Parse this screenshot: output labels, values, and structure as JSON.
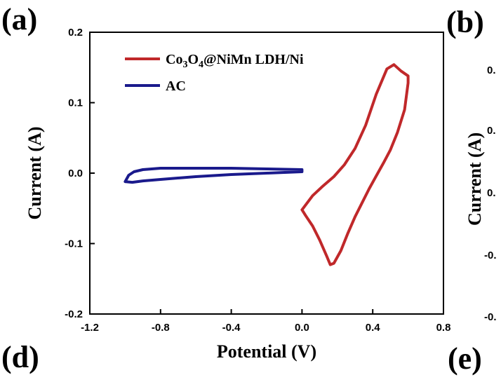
{
  "panels": {
    "a": "(a)",
    "b": "(b)",
    "d": "(d)",
    "e": "(e)"
  },
  "chart_data": {
    "type": "line",
    "title": "",
    "xlabel": "Potential (V)",
    "ylabel": "Current (A)",
    "xlim": [
      -1.2,
      0.8
    ],
    "ylim": [
      -0.2,
      0.2
    ],
    "xticks": [
      -1.2,
      -0.8,
      -0.4,
      0.0,
      0.4,
      0.8
    ],
    "xtick_labels": [
      "-1.2",
      "-0.8",
      "-0.4",
      "0.0",
      "0.4",
      "0.8"
    ],
    "yticks": [
      -0.2,
      -0.1,
      0.0,
      0.1,
      0.2
    ],
    "ytick_labels": [
      "-0.2",
      "-0.1",
      "0.0",
      "0.1",
      "0.2"
    ],
    "grid": false,
    "legend_position": "top-left",
    "series": [
      {
        "name": "Co3O4@NiMn LDH/Ni",
        "legend_main": "Co",
        "legend_sub1": "3",
        "legend_mid": "O",
        "legend_sub2": "4",
        "legend_tail": "@NiMn LDH/Ni",
        "color": "#c0282a",
        "x": [
          0.0,
          0.06,
          0.12,
          0.18,
          0.24,
          0.3,
          0.36,
          0.42,
          0.48,
          0.52,
          0.56,
          0.6,
          0.6,
          0.58,
          0.54,
          0.5,
          0.46,
          0.42,
          0.38,
          0.34,
          0.3,
          0.26,
          0.22,
          0.18,
          0.16,
          0.14,
          0.1,
          0.06,
          0.02,
          0.0
        ],
        "y": [
          -0.052,
          -0.032,
          -0.018,
          -0.005,
          0.012,
          0.035,
          0.068,
          0.112,
          0.148,
          0.154,
          0.145,
          0.138,
          0.128,
          0.09,
          0.058,
          0.033,
          0.014,
          -0.004,
          -0.022,
          -0.042,
          -0.062,
          -0.085,
          -0.11,
          -0.128,
          -0.13,
          -0.118,
          -0.095,
          -0.075,
          -0.06,
          -0.052
        ]
      },
      {
        "name": "AC",
        "legend_main": "AC",
        "color": "#1a1a8c",
        "x": [
          -1.0,
          -0.98,
          -0.95,
          -0.9,
          -0.8,
          -0.6,
          -0.4,
          -0.2,
          0.0,
          0.0,
          -0.2,
          -0.4,
          -0.6,
          -0.8,
          -0.9,
          -0.96,
          -1.0
        ],
        "y": [
          -0.012,
          -0.003,
          0.002,
          0.005,
          0.007,
          0.007,
          0.007,
          0.006,
          0.005,
          0.002,
          0.0,
          -0.002,
          -0.005,
          -0.009,
          -0.011,
          -0.013,
          -0.012
        ]
      }
    ]
  },
  "panel_b_partial": {
    "ylabel": "Current (A)",
    "tick_labels": [
      "0.",
      "0.",
      "0.",
      "-0.",
      "-0."
    ]
  }
}
